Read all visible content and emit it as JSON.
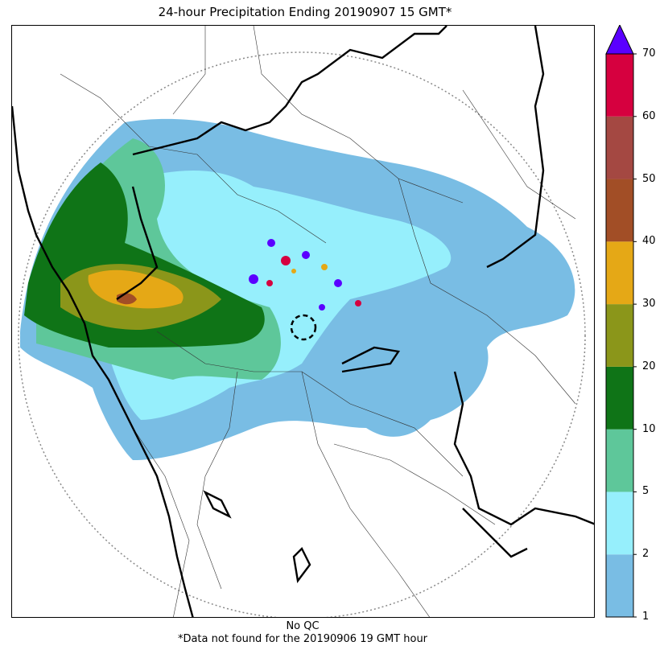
{
  "title": "24-hour Precipitation Ending 20190907 15 GMT*",
  "footer": {
    "qc_note": "No QC",
    "missing_note": "*Data not found for the 20190906 19 GMT hour"
  },
  "colorbar": {
    "levels": [
      "1",
      "2",
      "5",
      "10",
      "20",
      "30",
      "40",
      "50",
      "60",
      "70"
    ],
    "colors": [
      "#79bde4",
      "#96effc",
      "#5ec79a",
      "#0f7417",
      "#8b961a",
      "#e5a816",
      "#a24e26",
      "#a44842",
      "#d6003f"
    ],
    "overflow_color": "#5a00ff"
  }
}
